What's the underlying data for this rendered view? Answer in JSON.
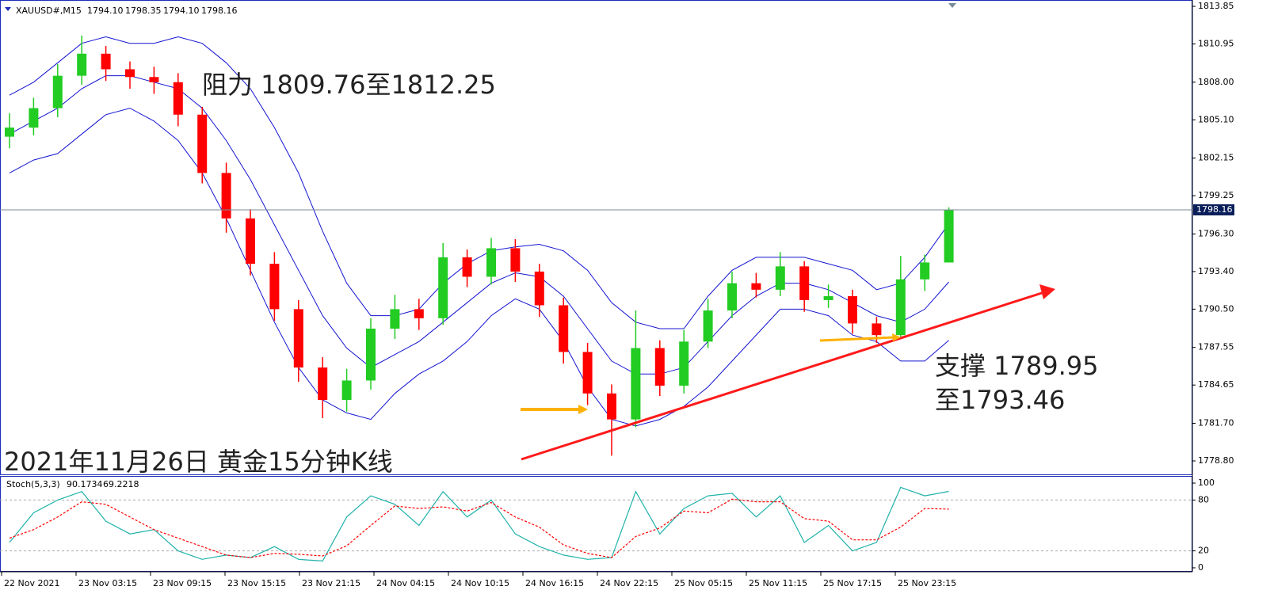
{
  "chart_data": {
    "type": "candlestick",
    "title": "2021年11月26日 黄金15分钟K线",
    "symbol": "XAUUSD#,M15",
    "ohlc": [
      "1794.10",
      "1798.35",
      "1794.10",
      "1798.16"
    ],
    "annotations": [
      "阻力 1809.76至1812.25",
      "支撑 1789.95",
      "至1793.46"
    ],
    "x_labels": [
      "22 Nov 2021",
      "23 Nov 03:15",
      "23 Nov 09:15",
      "23 Nov 15:15",
      "23 Nov 21:15",
      "24 Nov 04:15",
      "24 Nov 10:15",
      "24 Nov 16:15",
      "24 Nov 22:15",
      "25 Nov 05:15",
      "25 Nov 11:15",
      "25 Nov 17:15",
      "25 Nov 23:15"
    ],
    "open": [
      1803.8,
      1804.5,
      1806.0,
      1808.5,
      1810.2,
      1809.0,
      1808.4,
      1808.0,
      1805.5,
      1801.0,
      1797.5,
      1794.0,
      1790.5,
      1786.0,
      1783.5,
      1785.0,
      1789.0,
      1790.5,
      1789.8,
      1794.5,
      1793.0,
      1795.2,
      1793.4,
      1790.8,
      1787.2,
      1784.0,
      1782.0,
      1787.5,
      1784.6,
      1788.0,
      1790.4,
      1792.5,
      1792.0,
      1793.8,
      1791.2,
      1791.5,
      1789.4,
      1788.5,
      1792.8,
      1794.1
    ],
    "high": [
      1805.6,
      1806.8,
      1809.4,
      1811.6,
      1810.8,
      1809.6,
      1809.2,
      1808.7,
      1806.1,
      1801.8,
      1798.2,
      1794.9,
      1791.2,
      1786.8,
      1785.9,
      1789.8,
      1791.6,
      1791.3,
      1795.6,
      1795.1,
      1796.0,
      1795.9,
      1794.0,
      1791.4,
      1787.9,
      1784.7,
      1790.4,
      1788.1,
      1788.9,
      1791.3,
      1793.4,
      1793.3,
      1794.9,
      1794.2,
      1792.4,
      1792.0,
      1789.9,
      1794.6,
      1794.7,
      1798.35
    ],
    "low": [
      1802.9,
      1803.9,
      1805.3,
      1807.8,
      1808.1,
      1807.5,
      1807.1,
      1804.6,
      1800.2,
      1796.4,
      1793.1,
      1789.6,
      1784.9,
      1782.1,
      1782.6,
      1784.3,
      1788.2,
      1788.9,
      1789.3,
      1792.2,
      1792.4,
      1792.6,
      1789.9,
      1786.3,
      1783.1,
      1779.2,
      1781.4,
      1783.8,
      1784.0,
      1787.5,
      1789.8,
      1791.4,
      1791.5,
      1790.3,
      1790.6,
      1788.6,
      1787.9,
      1788.2,
      1791.9,
      1794.1
    ],
    "close": [
      1804.5,
      1806.0,
      1808.5,
      1810.2,
      1809.0,
      1808.4,
      1808.0,
      1805.5,
      1801.0,
      1797.5,
      1794.0,
      1790.5,
      1786.0,
      1783.5,
      1785.0,
      1789.0,
      1790.5,
      1789.8,
      1794.5,
      1793.0,
      1795.2,
      1793.4,
      1790.8,
      1787.2,
      1784.0,
      1782.0,
      1787.5,
      1784.6,
      1788.0,
      1790.4,
      1792.5,
      1792.0,
      1793.8,
      1791.2,
      1791.5,
      1789.4,
      1788.5,
      1792.8,
      1794.1,
      1798.16
    ],
    "up_color": "#22cc22",
    "down_color": "#ff0000",
    "price_line_color": "#7a8a9a",
    "bands": {
      "color": "#1414d2",
      "upper": [
        1807,
        1808,
        1809.5,
        1811,
        1811.5,
        1811,
        1811,
        1811.5,
        1811,
        1809.5,
        1807.5,
        1804.5,
        1801,
        1796.5,
        1792.5,
        1790,
        1790,
        1790.5,
        1792.5,
        1794,
        1795,
        1795.3,
        1795.5,
        1795,
        1793.5,
        1791,
        1789.5,
        1789,
        1789,
        1791.5,
        1793.5,
        1794.5,
        1794.5,
        1794.5,
        1794,
        1793.5,
        1792,
        1792.5,
        1794.5,
        1797.1
      ],
      "middle": [
        1804,
        1805,
        1806,
        1807.5,
        1808.5,
        1808.5,
        1808,
        1807.5,
        1806,
        1803.5,
        1800.5,
        1797,
        1793.5,
        1790,
        1787.5,
        1786,
        1787,
        1788,
        1789.5,
        1791,
        1792.5,
        1793.3,
        1793,
        1791.5,
        1789,
        1786.5,
        1785.5,
        1785.5,
        1786,
        1788,
        1790,
        1791.5,
        1792.5,
        1792.5,
        1792,
        1791,
        1790,
        1789.5,
        1790.5,
        1792.6
      ],
      "lower": [
        1801,
        1802,
        1802.5,
        1804,
        1805.5,
        1806,
        1805,
        1803.5,
        1801,
        1797.5,
        1793.5,
        1789.5,
        1786,
        1783.5,
        1782.5,
        1782,
        1784,
        1785.5,
        1786.5,
        1788,
        1790,
        1791.3,
        1790.5,
        1788,
        1784.5,
        1782,
        1781.5,
        1782,
        1783,
        1784.5,
        1786.5,
        1788.5,
        1790.5,
        1790.5,
        1790,
        1788.5,
        1788,
        1786.5,
        1786.5,
        1788.1
      ]
    },
    "ylim": [
      1777.7,
      1814.34
    ],
    "yticks": [
      1813.85,
      1810.95,
      {
        "value": 1808.0,
        "label": "1808.00"
      },
      {
        "value": 1805.1,
        "label": "1805.10"
      },
      1802.15,
      1799.25,
      {
        "value": 1796.3,
        "label": "1796.30"
      },
      {
        "value": 1793.4,
        "label": "1793.40"
      },
      {
        "value": 1790.5,
        "label": "1790.50"
      },
      1787.55,
      1784.65,
      {
        "value": 1781.7,
        "label": "1781.70"
      },
      {
        "value": 1778.8,
        "label": "1778.80"
      }
    ],
    "indicator": {
      "type": "line",
      "name": "Stoch(5,3,3)",
      "series": [
        {
          "color": "#20b2aa",
          "values": [
            30,
            65,
            80,
            90,
            55,
            40,
            45,
            20,
            10,
            15,
            12,
            25,
            10,
            8,
            60,
            85,
            75,
            50,
            90,
            60,
            80,
            40,
            25,
            15,
            10,
            12,
            90,
            40,
            70,
            85,
            88,
            60,
            85,
            30,
            50,
            20,
            30,
            95,
            85,
            90.1734
          ]
        },
        {
          "color": "#ff0000",
          "dash": true,
          "values": [
            35,
            45,
            60,
            78,
            75,
            60,
            45,
            35,
            25,
            15,
            12,
            17,
            16,
            14,
            26,
            50,
            73,
            70,
            72,
            67,
            77,
            60,
            48,
            27,
            17,
            12,
            37,
            47,
            67,
            65,
            81,
            78,
            78,
            58,
            55,
            33,
            33,
            48,
            70,
            69.2218
          ]
        }
      ],
      "ylim": [
        -4.7,
        107.5
      ],
      "yticks": [
        100,
        80,
        20,
        0
      ],
      "levels": [
        80,
        20
      ]
    }
  }
}
